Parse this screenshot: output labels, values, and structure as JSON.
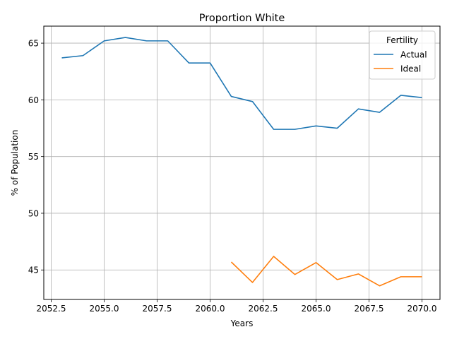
{
  "chart_data": {
    "type": "line",
    "title": "Proportion White",
    "xlabel": "Years",
    "ylabel": "% of Population",
    "xlim": [
      2052.15,
      2070.85
    ],
    "ylim": [
      42.4,
      66.5
    ],
    "xticks": [
      2052.5,
      2055.0,
      2057.5,
      2060.0,
      2062.5,
      2065.0,
      2067.5,
      2070.0
    ],
    "xtick_labels": [
      "2052.5",
      "2055.0",
      "2057.5",
      "2060.0",
      "2062.5",
      "2065.0",
      "2067.5",
      "2070.0"
    ],
    "yticks": [
      45,
      50,
      55,
      60,
      65
    ],
    "ytick_labels": [
      "45",
      "50",
      "55",
      "60",
      "65"
    ],
    "grid": true,
    "legend": {
      "title": "Fertility",
      "position": "top-right"
    },
    "series": [
      {
        "name": "Actual",
        "color": "#1f77b4",
        "x": [
          2053,
          2054,
          2055,
          2056,
          2057,
          2058,
          2059,
          2060,
          2061,
          2062,
          2063,
          2064,
          2065,
          2066,
          2067,
          2068,
          2069,
          2070
        ],
        "y": [
          63.7,
          63.9,
          65.2,
          65.5,
          65.2,
          65.2,
          63.25,
          63.25,
          60.3,
          59.85,
          57.4,
          57.4,
          57.7,
          57.5,
          59.2,
          58.9,
          60.4,
          60.2
        ]
      },
      {
        "name": "Ideal",
        "color": "#ff7f0e",
        "x": [
          2061,
          2062,
          2063,
          2064,
          2065,
          2066,
          2067,
          2068,
          2069,
          2070
        ],
        "y": [
          45.7,
          43.9,
          46.2,
          44.6,
          45.65,
          44.15,
          44.65,
          43.6,
          44.4,
          44.4
        ]
      }
    ]
  }
}
